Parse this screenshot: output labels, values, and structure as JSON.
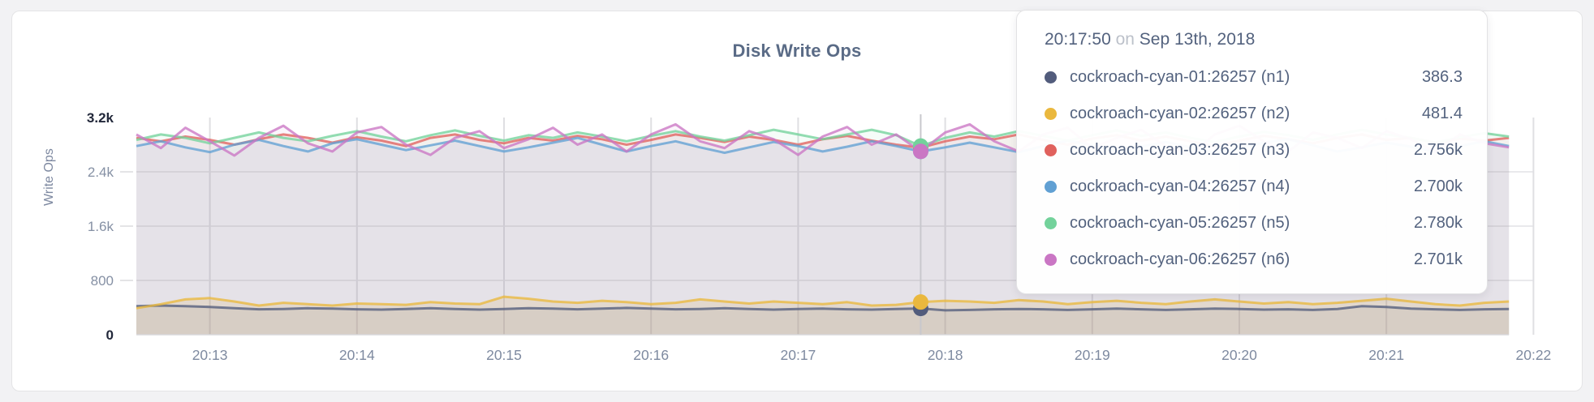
{
  "page": {
    "background_color": "#f2f2f4",
    "card_border_color": "#e4e4e6"
  },
  "chart_data": {
    "type": "line",
    "title": "Disk Write Ops",
    "xlabel": "",
    "ylabel": "Write Ops",
    "ylim": [
      0,
      3200
    ],
    "grid": true,
    "legend_position": "tooltip-only",
    "x_start_time": "20:12:30",
    "x_step_seconds": 10,
    "x_ticks": [
      {
        "t": 30,
        "label": "20:13"
      },
      {
        "t": 90,
        "label": "20:14"
      },
      {
        "t": 150,
        "label": "20:15"
      },
      {
        "t": 210,
        "label": "20:16"
      },
      {
        "t": 270,
        "label": "20:17"
      },
      {
        "t": 330,
        "label": "20:18"
      },
      {
        "t": 390,
        "label": "20:19"
      },
      {
        "t": 450,
        "label": "20:20"
      },
      {
        "t": 510,
        "label": "20:21"
      },
      {
        "t": 570,
        "label": "20:22"
      }
    ],
    "y_ticks": [
      {
        "v": 0,
        "label": "0",
        "strong": true
      },
      {
        "v": 800,
        "label": "800",
        "strong": false
      },
      {
        "v": 1600,
        "label": "1.6k",
        "strong": false
      },
      {
        "v": 2400,
        "label": "2.4k",
        "strong": false
      },
      {
        "v": 3200,
        "label": "3.2k",
        "strong": true
      }
    ],
    "hover_index": 32,
    "series": [
      {
        "name": "cockroach-cyan-01:26257 (n1)",
        "color": "#525c7c",
        "values": [
          420,
          430,
          420,
          410,
          390,
          375,
          380,
          390,
          385,
          375,
          370,
          380,
          390,
          380,
          370,
          380,
          390,
          385,
          375,
          385,
          395,
          385,
          375,
          380,
          390,
          380,
          370,
          380,
          385,
          375,
          370,
          380,
          386.3,
          360,
          365,
          375,
          380,
          375,
          365,
          375,
          385,
          375,
          365,
          375,
          385,
          380,
          370,
          375,
          365,
          380,
          420,
          410,
          385,
          375,
          365,
          375,
          380
        ]
      },
      {
        "name": "cockroach-cyan-02:26257 (n2)",
        "color": "#eab83e",
        "values": [
          390,
          450,
          520,
          540,
          490,
          430,
          470,
          450,
          430,
          460,
          450,
          440,
          480,
          460,
          450,
          560,
          530,
          490,
          470,
          500,
          480,
          450,
          470,
          520,
          490,
          460,
          490,
          470,
          450,
          480,
          430,
          440,
          481.4,
          500,
          490,
          470,
          510,
          490,
          450,
          480,
          500,
          470,
          450,
          490,
          520,
          490,
          460,
          480,
          450,
          470,
          500,
          530,
          490,
          450,
          430,
          470,
          490
        ]
      },
      {
        "name": "cockroach-cyan-03:26257 (n3)",
        "color": "#e0615d",
        "values": [
          2900,
          2850,
          2920,
          2870,
          2800,
          2880,
          2950,
          2900,
          2830,
          2910,
          2860,
          2780,
          2900,
          2950,
          2870,
          2820,
          2900,
          2860,
          2930,
          2880,
          2800,
          2870,
          2950,
          2900,
          2840,
          2920,
          2870,
          2800,
          2880,
          2930,
          2860,
          2800,
          2756,
          2850,
          2920,
          2880,
          2950,
          2870,
          2800,
          2890,
          2940,
          2860,
          2920,
          2850,
          2780,
          2860,
          2930,
          2880,
          2820,
          2900,
          2950,
          2870,
          2900,
          2830,
          2890,
          2860,
          2900
        ]
      },
      {
        "name": "cockroach-cyan-04:26257 (n4)",
        "color": "#61a0d3",
        "values": [
          2780,
          2850,
          2760,
          2690,
          2800,
          2870,
          2780,
          2700,
          2820,
          2880,
          2800,
          2720,
          2790,
          2860,
          2780,
          2700,
          2760,
          2830,
          2900,
          2800,
          2700,
          2780,
          2850,
          2760,
          2680,
          2760,
          2840,
          2780,
          2700,
          2770,
          2850,
          2780,
          2700,
          2760,
          2830,
          2760,
          2690,
          2780,
          2860,
          2790,
          2700,
          2770,
          2840,
          2760,
          2680,
          2750,
          2830,
          2880,
          2790,
          2700,
          2760,
          2830,
          2770,
          2700,
          2780,
          2850,
          2780
        ]
      },
      {
        "name": "cockroach-cyan-05:26257 (n5)",
        "color": "#73d29b",
        "values": [
          2870,
          2950,
          2900,
          2820,
          2900,
          2980,
          2900,
          2850,
          2930,
          3000,
          2920,
          2850,
          2940,
          3010,
          2930,
          2860,
          2940,
          2900,
          2980,
          2920,
          2850,
          2930,
          3000,
          2920,
          2860,
          2940,
          3020,
          2950,
          2880,
          2950,
          3020,
          2940,
          2780,
          2900,
          2980,
          2920,
          3000,
          2930,
          2860,
          2940,
          3010,
          2930,
          2980,
          2900,
          2840,
          2920,
          2990,
          2940,
          2870,
          2950,
          3020,
          2950,
          2900,
          2830,
          2910,
          2970,
          2920
        ]
      },
      {
        "name": "cockroach-cyan-06:26257 (n6)",
        "color": "#ca76c4",
        "values": [
          2950,
          2750,
          3050,
          2850,
          2640,
          2900,
          3080,
          2820,
          2700,
          2980,
          3060,
          2800,
          2650,
          2900,
          3000,
          2750,
          2880,
          3050,
          2800,
          2950,
          2700,
          2950,
          3100,
          2850,
          2750,
          3000,
          2880,
          2650,
          2920,
          3060,
          2800,
          2950,
          2701,
          2980,
          3100,
          2850,
          2700,
          2950,
          3050,
          2750,
          2900,
          3020,
          2780,
          2650,
          2950,
          3080,
          2850,
          2700,
          2980,
          2900,
          2750,
          3000,
          2880,
          2700,
          2950,
          2820,
          2760
        ]
      }
    ]
  },
  "tooltip": {
    "time": "20:17:50",
    "on_word": "on",
    "date": "Sep 13th, 2018",
    "rows": [
      {
        "label": "cockroach-cyan-01:26257 (n1)",
        "value": "386.3"
      },
      {
        "label": "cockroach-cyan-02:26257 (n2)",
        "value": "481.4"
      },
      {
        "label": "cockroach-cyan-03:26257 (n3)",
        "value": "2.756k"
      },
      {
        "label": "cockroach-cyan-04:26257 (n4)",
        "value": "2.700k"
      },
      {
        "label": "cockroach-cyan-05:26257 (n5)",
        "value": "2.780k"
      },
      {
        "label": "cockroach-cyan-06:26257 (n6)",
        "value": "2.701k"
      }
    ]
  }
}
